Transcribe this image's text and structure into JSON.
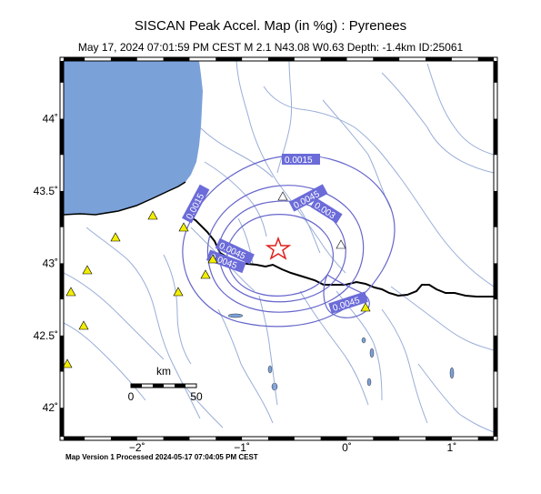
{
  "header": {
    "title": "SISCAN Peak Accel. Map (in %g) : Pyrenees",
    "subtitle": "May 17, 2024 07:01:59 PM CEST   M 2.1   N43.08 W0.63   Depth: -1.4km   ID:25061"
  },
  "footer": {
    "text": "Map Version 1 Processed 2024-05-17 07:04:05 PM CEST"
  },
  "map": {
    "lon_range": [
      -2.7,
      1.4
    ],
    "lat_range": [
      41.8,
      44.4
    ],
    "epicenter": {
      "lon": -0.63,
      "lat": 43.08
    },
    "lat_ticks": [
      {
        "value": 44,
        "label": "44˚"
      },
      {
        "value": 43.5,
        "label": "43.5˚"
      },
      {
        "value": 43,
        "label": "43˚"
      },
      {
        "value": 42.5,
        "label": "42.5˚"
      },
      {
        "value": 42,
        "label": "42˚"
      }
    ],
    "lon_ticks": [
      {
        "value": -2,
        "label": "−2˚"
      },
      {
        "value": -1,
        "label": "−1˚"
      },
      {
        "value": 0,
        "label": "0˚"
      },
      {
        "value": 1,
        "label": "1˚"
      }
    ],
    "contour_labels": [
      "0.0015",
      "0.0015",
      "0.003",
      "0.0045",
      "0.0045",
      "0.0045",
      "0.0045"
    ],
    "scale_bar": {
      "unit": "km",
      "label_start": "0",
      "label_end": "50"
    },
    "colors": {
      "sea": "#7ba1d9",
      "contour": "#6666cc",
      "contour_label_bg": "#6b6bd9",
      "river": "#9aaed8",
      "border": "#000000",
      "station_fill": "#f2ee00",
      "epicenter": "#e0201c"
    }
  }
}
